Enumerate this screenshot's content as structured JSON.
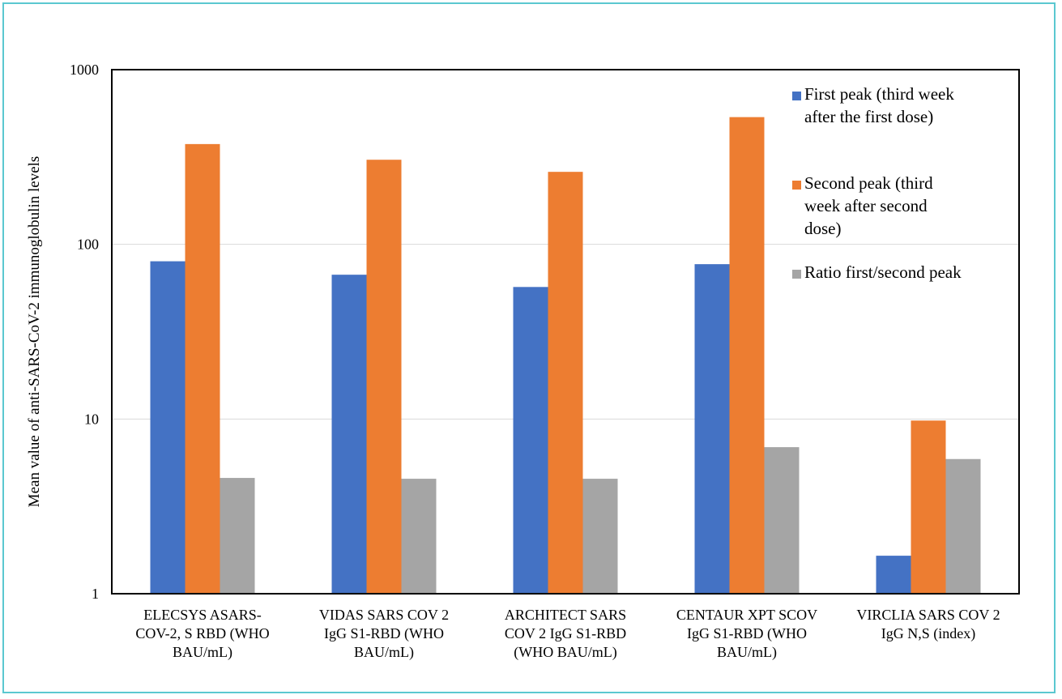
{
  "chart_data": {
    "type": "bar",
    "title": "",
    "ylabel": "Mean value of anti-SARS-CoV-2 immunoglobulin levels",
    "xlabel": "",
    "yscale": "log",
    "ylim": [
      1,
      1000
    ],
    "yticks": [
      "1",
      "10",
      "100",
      "1000"
    ],
    "grid": true,
    "legend_position": "top-right",
    "categories": [
      [
        "ELECSYS ASARS-",
        "COV-2, S RBD (WHO",
        "BAU/mL)"
      ],
      [
        "VIDAS SARS COV 2",
        "IgG S1-RBD  (WHO",
        "BAU/mL)"
      ],
      [
        "ARCHITECT SARS",
        "COV 2 IgG  S1-RBD",
        "(WHO BAU/mL)"
      ],
      [
        "CENTAUR XPT SCOV",
        "IgG S1-RBD (WHO",
        "BAU/mL)"
      ],
      [
        "VIRCLIA SARS COV 2",
        "IgG N,S (index)"
      ]
    ],
    "series": [
      {
        "name": [
          "First peak (third week",
          "after the first dose)"
        ],
        "color": "#4472c4",
        "values": [
          80,
          67,
          57,
          77,
          1.65
        ]
      },
      {
        "name": [
          "Second peak (third",
          "week after second",
          "  dose)"
        ],
        "color": "#ed7d31",
        "values": [
          375,
          305,
          260,
          535,
          9.8
        ]
      },
      {
        "name": [
          "Ratio first/second peak"
        ],
        "color": "#a5a5a5",
        "values": [
          4.6,
          4.55,
          4.55,
          6.9,
          5.9
        ]
      }
    ]
  }
}
